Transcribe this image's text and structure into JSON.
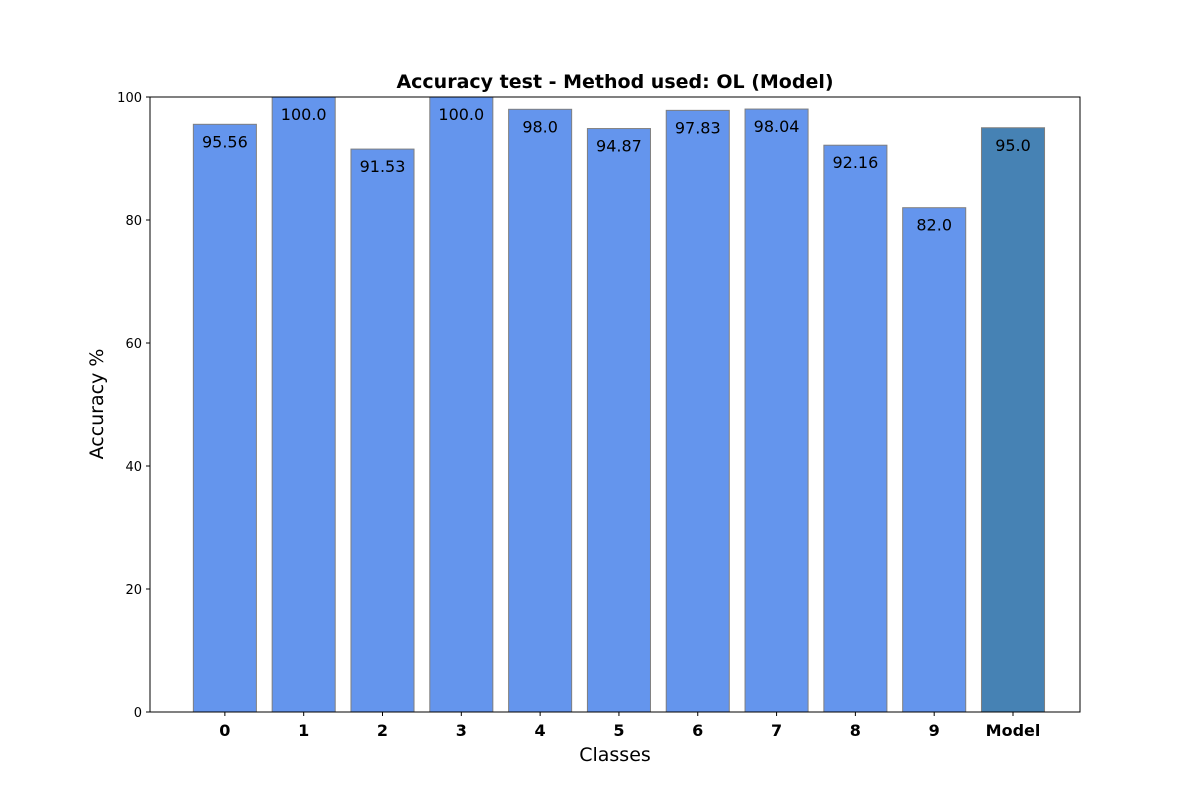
{
  "chart_data": {
    "type": "bar",
    "title": "Accuracy test - Method used: OL (Model)",
    "xlabel": "Classes",
    "ylabel": "Accuracy %",
    "ylim": [
      0,
      100
    ],
    "y_ticks": [
      0,
      20,
      40,
      60,
      80,
      100
    ],
    "grid": false,
    "legend": "none",
    "categories": [
      "0",
      "1",
      "2",
      "3",
      "4",
      "5",
      "6",
      "7",
      "8",
      "9",
      "Model"
    ],
    "values": [
      95.56,
      100.0,
      91.53,
      100.0,
      98.0,
      94.87,
      97.83,
      98.04,
      92.16,
      82.0,
      95.0
    ],
    "value_labels": [
      "95.56",
      "100.0",
      "91.53",
      "100.0",
      "98.0",
      "94.87",
      "97.83",
      "98.04",
      "92.16",
      "82.0",
      "95.0"
    ],
    "colors": {
      "class_bar": "#6495ed",
      "model_bar": "#4682b4",
      "bar_edge": "#7f7f7f"
    }
  }
}
